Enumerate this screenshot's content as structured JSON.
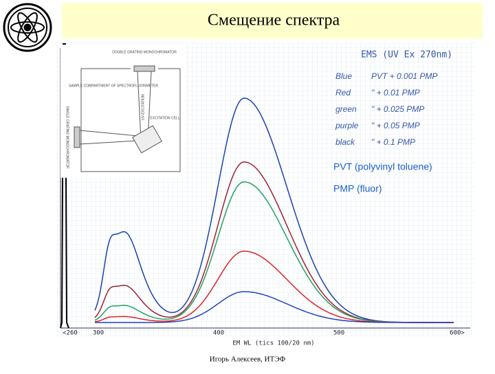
{
  "header": {
    "title": "Смещение спектра"
  },
  "figure": {
    "inset": {
      "labels": [
        "DOUBLE GRATING MONOCHROMATOR",
        "SAMPLE COMPARTMENT OF SPECTROFLUORIMETER",
        "UV-EXCITATION",
        "EXCITATION CELL",
        "SINGLE GRATING MONOCHROMATOR"
      ]
    },
    "heading": "EMS (UV Ex 270nm)",
    "legend": [
      [
        "Blue",
        "PVT + 0.001 PMP"
      ],
      [
        "Red",
        "\" + 0.01 PMP"
      ],
      [
        "green",
        "\" + 0.025 PMP"
      ],
      [
        "purple",
        "\" + 0.05 PMP"
      ],
      [
        "black",
        "\" + 0.1 PMP"
      ]
    ],
    "notes": [
      "PVT (polyvinyl toluene)",
      "PMP (fluor)"
    ],
    "x_ticks": [
      "<260",
      "300",
      "400",
      "500",
      "600>"
    ],
    "x_label": "EM WL (tics 100/20 nm)"
  },
  "footer": {
    "author": "Игорь Алексеев, ИТЭФ"
  }
}
